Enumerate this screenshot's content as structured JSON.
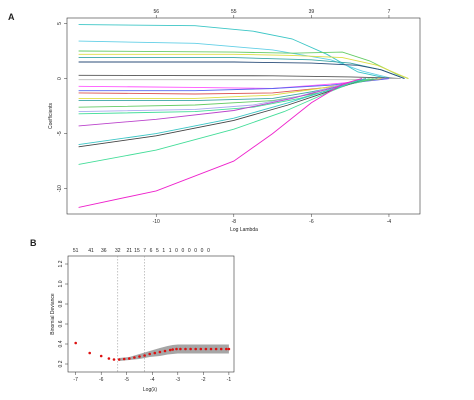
{
  "chart_data": [
    {
      "panel": "A",
      "type": "line",
      "xlabel": "Log Lambda",
      "ylabel": "Coefficients",
      "xlim": [
        -12.3,
        -3.2
      ],
      "ylim": [
        -12.3,
        5.5
      ],
      "x_ticks": [
        -10,
        -8,
        -6,
        -4
      ],
      "y_ticks": [
        -10,
        -5,
        0,
        5
      ],
      "top_x_ticks": [
        -10,
        -8,
        -6,
        -4
      ],
      "top_labels": [
        "56",
        "55",
        "39",
        "7"
      ],
      "series": [
        {
          "color": "#3cc6c6",
          "values": [
            [
              -12,
              4.9
            ],
            [
              -9,
              4.8
            ],
            [
              -7.5,
              4.3
            ],
            [
              -6.5,
              3.6
            ],
            [
              -5.6,
              2.2
            ],
            [
              -4.8,
              0.6
            ],
            [
              -4,
              0
            ]
          ]
        },
        {
          "color": "#62cfe6",
          "values": [
            [
              -12,
              3.4
            ],
            [
              -9,
              3.2
            ],
            [
              -7,
              2.6
            ],
            [
              -5.5,
              1.7
            ],
            [
              -4.7,
              0.7
            ],
            [
              -3.9,
              0
            ]
          ]
        },
        {
          "color": "#66cc66",
          "values": [
            [
              -12,
              2.5
            ],
            [
              -8,
              2.4
            ],
            [
              -6.5,
              2.3
            ],
            [
              -5.2,
              2.4
            ],
            [
              -4.5,
              1.6
            ],
            [
              -3.8,
              0.4
            ],
            [
              -3.5,
              0
            ]
          ]
        },
        {
          "color": "#dddd44",
          "values": [
            [
              -12,
              2.2
            ],
            [
              -8,
              2.2
            ],
            [
              -6.5,
              2.1
            ],
            [
              -5.2,
              1.9
            ],
            [
              -4.3,
              1.2
            ],
            [
              -3.7,
              0.3
            ],
            [
              -3.5,
              0
            ]
          ]
        },
        {
          "color": "#3aa5a5",
          "values": [
            [
              -12,
              1.9
            ],
            [
              -8,
              1.9
            ],
            [
              -6,
              1.7
            ],
            [
              -5,
              1.4
            ],
            [
              -4.2,
              0.8
            ],
            [
              -3.6,
              0
            ]
          ]
        },
        {
          "color": "#2b4e7a",
          "values": [
            [
              -12,
              1.5
            ],
            [
              -8,
              1.5
            ],
            [
              -6,
              1.4
            ],
            [
              -4.8,
              1.2
            ],
            [
              -4.2,
              0.8
            ],
            [
              -3.6,
              0
            ]
          ]
        },
        {
          "color": "#555555",
          "values": [
            [
              -12,
              0.3
            ],
            [
              -7,
              0.25
            ],
            [
              -5,
              0.15
            ],
            [
              -4,
              0.05
            ],
            [
              -3.7,
              0
            ]
          ]
        },
        {
          "color": "#bbbbbb",
          "values": [
            [
              -12,
              -0.1
            ],
            [
              -7,
              -0.1
            ],
            [
              -5,
              -0.1
            ],
            [
              -4,
              0
            ],
            [
              -3.7,
              0
            ]
          ]
        },
        {
          "color": "#ff55ff",
          "values": [
            [
              -12,
              -0.7
            ],
            [
              -9,
              -0.8
            ],
            [
              -7,
              -0.9
            ],
            [
              -5.5,
              -0.5
            ],
            [
              -4.6,
              -0.2
            ],
            [
              -4,
              0
            ]
          ]
        },
        {
          "color": "#5566ee",
          "values": [
            [
              -12,
              -1.1
            ],
            [
              -9,
              -1.1
            ],
            [
              -7,
              -0.9
            ],
            [
              -5.5,
              -0.6
            ],
            [
              -4.5,
              -0.2
            ],
            [
              -4,
              0
            ]
          ]
        },
        {
          "color": "#dd5555",
          "values": [
            [
              -12,
              -1.3
            ],
            [
              -9,
              -1.4
            ],
            [
              -7,
              -1.3
            ],
            [
              -5.6,
              -0.8
            ],
            [
              -4.8,
              -0.3
            ],
            [
              -4.2,
              0
            ]
          ]
        },
        {
          "color": "#dddd44",
          "values": [
            [
              -12,
              -1.8
            ],
            [
              -9,
              -1.8
            ],
            [
              -7,
              -1.5
            ],
            [
              -5.8,
              -0.9
            ],
            [
              -4.8,
              -0.3
            ],
            [
              -4.2,
              0
            ]
          ]
        },
        {
          "color": "#3aa5a5",
          "values": [
            [
              -12,
              -2.0
            ],
            [
              -9,
              -2.0
            ],
            [
              -7,
              -1.8
            ],
            [
              -6,
              -1.2
            ],
            [
              -5,
              -0.5
            ],
            [
              -4.3,
              0
            ]
          ]
        },
        {
          "color": "#66cc66",
          "values": [
            [
              -12,
              -2.6
            ],
            [
              -9,
              -2.4
            ],
            [
              -7,
              -2.0
            ],
            [
              -5.8,
              -1.3
            ],
            [
              -5,
              -0.5
            ],
            [
              -4.4,
              0
            ]
          ]
        },
        {
          "color": "#44dd99",
          "values": [
            [
              -12,
              -3.2
            ],
            [
              -9,
              -3.0
            ],
            [
              -7.5,
              -2.6
            ],
            [
              -6.3,
              -1.8
            ],
            [
              -5.3,
              -0.8
            ],
            [
              -4.5,
              0
            ]
          ]
        },
        {
          "color": "#aaaaee",
          "values": [
            [
              -12,
              -3.0
            ],
            [
              -9,
              -2.8
            ],
            [
              -7.5,
              -2.4
            ],
            [
              -6.3,
              -1.6
            ],
            [
              -5.3,
              -0.6
            ],
            [
              -4.6,
              0
            ]
          ]
        },
        {
          "color": "#bb44cc",
          "values": [
            [
              -12,
              -4.3
            ],
            [
              -10,
              -3.7
            ],
            [
              -8,
              -2.9
            ],
            [
              -6.5,
              -1.8
            ],
            [
              -5.4,
              -0.8
            ],
            [
              -4.6,
              0
            ]
          ]
        },
        {
          "color": "#444444",
          "values": [
            [
              -12,
              -6.2
            ],
            [
              -10,
              -5.2
            ],
            [
              -8,
              -3.8
            ],
            [
              -6.6,
              -2.4
            ],
            [
              -5.5,
              -1.1
            ],
            [
              -4.6,
              0
            ]
          ]
        },
        {
          "color": "#3cc6c6",
          "values": [
            [
              -12,
              -6.0
            ],
            [
              -10,
              -5.0
            ],
            [
              -8,
              -3.6
            ],
            [
              -6.6,
              -2.2
            ],
            [
              -5.5,
              -1.0
            ],
            [
              -4.6,
              0
            ]
          ]
        },
        {
          "color": "#44dd99",
          "values": [
            [
              -12,
              -7.8
            ],
            [
              -10,
              -6.5
            ],
            [
              -8,
              -4.6
            ],
            [
              -6.7,
              -3.0
            ],
            [
              -5.6,
              -1.3
            ],
            [
              -4.7,
              0
            ]
          ]
        },
        {
          "color": "#ee22cc",
          "values": [
            [
              -12,
              -11.7
            ],
            [
              -10,
              -10.2
            ],
            [
              -8,
              -7.5
            ],
            [
              -7,
              -5.0
            ],
            [
              -6,
              -2.2
            ],
            [
              -5.2,
              -0.5
            ],
            [
              -4.7,
              0
            ]
          ]
        }
      ]
    },
    {
      "panel": "B",
      "type": "scatter",
      "xlabel": "Log(λ)",
      "ylabel": "Binomial Deviance",
      "xlim": [
        -7.3,
        -0.8
      ],
      "ylim": [
        0.12,
        1.28
      ],
      "x_ticks": [
        -7,
        -6,
        -5,
        -4,
        -3,
        -2,
        -1
      ],
      "y_ticks": [
        0.2,
        0.4,
        0.6,
        0.8,
        1.0,
        1.2
      ],
      "y_tick_labels": [
        "0.2",
        "0.4",
        "0.6",
        "0.8",
        "1.0",
        "1.2"
      ],
      "vlines": [
        -5.35,
        -4.3
      ],
      "top_x": [
        -7,
        -6.4,
        -5.9,
        -5.35,
        -4.9,
        -4.6,
        -4.3,
        -4.05,
        -3.8,
        -3.55,
        -3.3,
        -3.05,
        -2.8,
        -2.55,
        -2.3,
        -2.05,
        -1.8
      ],
      "top_labels": [
        "51",
        "41",
        "36",
        "32",
        "21",
        "15",
        "7",
        "6",
        "5",
        "1",
        "1",
        "0",
        "0",
        "0",
        "0",
        "0",
        "0"
      ],
      "points": [
        [
          -7.0,
          0.41
        ],
        [
          -6.45,
          0.31
        ],
        [
          -6.0,
          0.28
        ],
        [
          -5.7,
          0.255
        ],
        [
          -5.5,
          0.245
        ],
        [
          -5.3,
          0.245
        ],
        [
          -5.1,
          0.25
        ],
        [
          -4.9,
          0.255
        ],
        [
          -4.7,
          0.265
        ],
        [
          -4.5,
          0.275
        ],
        [
          -4.3,
          0.285
        ],
        [
          -4.1,
          0.3
        ],
        [
          -3.9,
          0.31
        ],
        [
          -3.7,
          0.32
        ],
        [
          -3.5,
          0.33
        ],
        [
          -3.3,
          0.34
        ],
        [
          -3.2,
          0.345
        ],
        [
          -3.05,
          0.35
        ],
        [
          -2.9,
          0.35
        ],
        [
          -2.7,
          0.35
        ],
        [
          -2.5,
          0.35
        ],
        [
          -2.3,
          0.35
        ],
        [
          -2.1,
          0.35
        ],
        [
          -1.9,
          0.35
        ],
        [
          -1.7,
          0.35
        ],
        [
          -1.5,
          0.35
        ],
        [
          -1.3,
          0.35
        ],
        [
          -1.1,
          0.35
        ],
        [
          -1.0,
          0.35
        ]
      ],
      "band_upper": [
        [
          -5.3,
          0.26
        ],
        [
          -4.9,
          0.27
        ],
        [
          -4.5,
          0.3
        ],
        [
          -4.1,
          0.33
        ],
        [
          -3.7,
          0.36
        ],
        [
          -3.4,
          0.38
        ],
        [
          -3.2,
          0.39
        ],
        [
          -3.0,
          0.395
        ],
        [
          -1.0,
          0.395
        ]
      ],
      "band_lower": [
        [
          -5.3,
          0.23
        ],
        [
          -4.9,
          0.24
        ],
        [
          -4.5,
          0.25
        ],
        [
          -4.1,
          0.27
        ],
        [
          -3.7,
          0.28
        ],
        [
          -3.4,
          0.295
        ],
        [
          -3.2,
          0.3
        ],
        [
          -3.0,
          0.305
        ],
        [
          -1.0,
          0.305
        ]
      ],
      "colors": {
        "points": "#dd1111",
        "band": "#888888"
      }
    }
  ]
}
